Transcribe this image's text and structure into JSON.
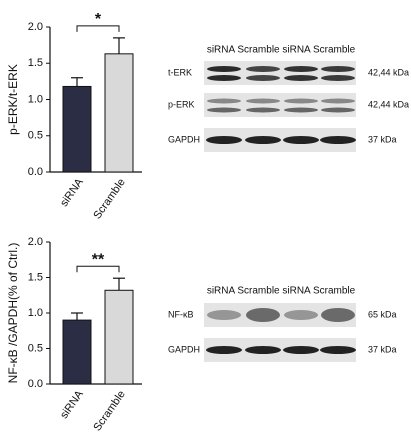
{
  "chart_data": [
    {
      "type": "bar",
      "ylabel": "p-ERK/t-ERK",
      "categories": [
        "siRNA",
        "Scramble"
      ],
      "values": [
        1.18,
        1.63
      ],
      "errors": [
        0.12,
        0.22
      ],
      "colors": [
        "#2b2d45",
        "#d9d9d9"
      ],
      "ylim": [
        0,
        2
      ],
      "yticks": [
        {
          "value": 0,
          "label": "0.0"
        },
        0.5,
        {
          "value": 1,
          "label": "1.0"
        },
        1.5,
        {
          "value": 2,
          "label": "2.0"
        }
      ],
      "annotation": "*"
    },
    {
      "type": "bar",
      "ylabel": "NF-κB /GAPDH(% of Ctrl.)",
      "categories": [
        "siRNA",
        "Scramble"
      ],
      "values": [
        0.9,
        1.32
      ],
      "errors": [
        0.1,
        0.17
      ],
      "colors": [
        "#2b2d45",
        "#d9d9d9"
      ],
      "ylim": [
        0,
        2
      ],
      "yticks": [
        {
          "value": 0,
          "label": "0.0"
        },
        0.5,
        {
          "value": 1,
          "label": "1.0"
        },
        1.5,
        {
          "value": 2,
          "label": "2.0"
        }
      ],
      "annotation": "**"
    }
  ],
  "blots": [
    {
      "header": "siRNA Scramble siRNA Scramble",
      "rows": [
        {
          "label": "t-ERK",
          "size": "42,44 kDa"
        },
        {
          "label": "p-ERK",
          "size": "42,44 kDa"
        },
        {
          "label": "GAPDH",
          "size": "37 kDa"
        }
      ]
    },
    {
      "header": "siRNA Scramble siRNA Scramble",
      "rows": [
        {
          "label": "NF-κB",
          "size": "65 kDa"
        },
        {
          "label": "GAPDH",
          "size": "37 kDa"
        }
      ]
    }
  ]
}
